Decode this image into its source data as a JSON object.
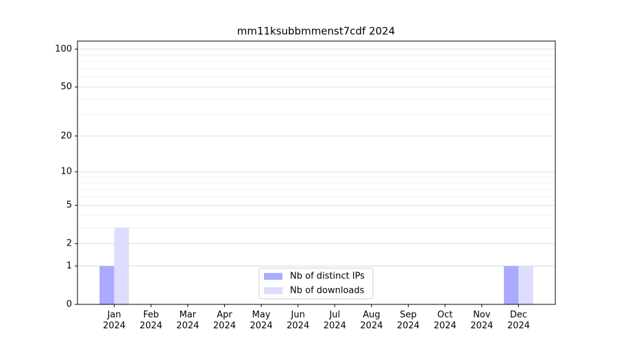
{
  "chart_data": {
    "type": "bar",
    "title": "mm11ksubbmmenst7cdf 2024",
    "categories": [
      "Jan\n2024",
      "Feb\n2024",
      "Mar\n2024",
      "Apr\n2024",
      "May\n2024",
      "Jun\n2024",
      "Jul\n2024",
      "Aug\n2024",
      "Sep\n2024",
      "Oct\n2024",
      "Nov\n2024",
      "Dec\n2024"
    ],
    "series": [
      {
        "name": "Nb of distinct IPs",
        "color": "#aaaaff",
        "values": [
          1,
          0,
          0,
          0,
          0,
          0,
          0,
          0,
          0,
          0,
          0,
          1
        ]
      },
      {
        "name": "Nb of downloads",
        "color": "#ddddff",
        "values": [
          3,
          0,
          0,
          0,
          0,
          0,
          0,
          0,
          0,
          0,
          0,
          1
        ]
      }
    ],
    "y_scale": "log1p",
    "ylim": [
      0,
      116
    ],
    "yticks": [
      0,
      1,
      2,
      5,
      10,
      20,
      50,
      100
    ],
    "minor_yticks": [
      3,
      4,
      6,
      7,
      8,
      9,
      30,
      40,
      60,
      70,
      80,
      90
    ],
    "grid": true,
    "legend": "lower center"
  }
}
